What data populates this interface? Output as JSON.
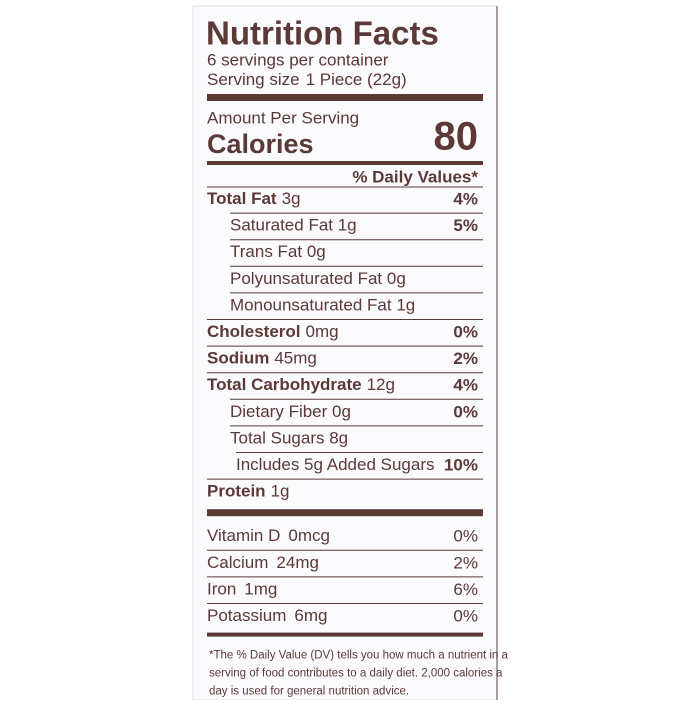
{
  "header": {
    "title": "Nutrition Facts",
    "servings": "6 servings per container",
    "serving_size_label": "Serving size",
    "serving_size": "1 Piece (22g)"
  },
  "calories": {
    "amount_label": "Amount Per Serving",
    "label": "Calories",
    "value": 80
  },
  "dv_header": "% Daily Values*",
  "nutrients": [
    {
      "name": "Total Fat",
      "amount": "3g",
      "dv": "4%",
      "sub": [
        {
          "name": "Saturated Fat 1g",
          "dv": "5%"
        },
        {
          "name": "Trans Fat 0g"
        },
        {
          "name": "Polyunsaturated Fat 0g"
        },
        {
          "name": "Monounsaturated Fat 1g"
        }
      ]
    },
    {
      "name": "Cholesterol",
      "amount": "0mg",
      "dv": "0%"
    },
    {
      "name": "Sodium",
      "amount": "45mg",
      "dv": "2%"
    },
    {
      "name": "Total Carbohydrate",
      "amount": "12g",
      "dv": "4%",
      "sub": [
        {
          "name": "Dietary Fiber 0g",
          "dv": "0%"
        },
        {
          "name": "Total Sugars 8g",
          "sub": [
            {
              "name": "Includes 5g Added Sugars",
              "dv": "10%"
            }
          ]
        }
      ]
    },
    {
      "name": "Protein",
      "amount": "1g"
    }
  ],
  "vitamins": [
    {
      "name": "Vitamin D",
      "amount": "0mcg",
      "dv": "0%"
    },
    {
      "name": "Calcium",
      "amount": "24mg",
      "dv": "2%"
    },
    {
      "name": "Iron",
      "amount": "1mg",
      "dv": "6%"
    },
    {
      "name": "Potassium",
      "amount": "6mg",
      "dv": "0%"
    }
  ],
  "footnote": [
    "*The % Daily Value (DV) tells you how much a nutrient in a",
    "serving of food contributes to a daily diet. 2,000 calories a",
    "day is used for general nutrition advice."
  ]
}
